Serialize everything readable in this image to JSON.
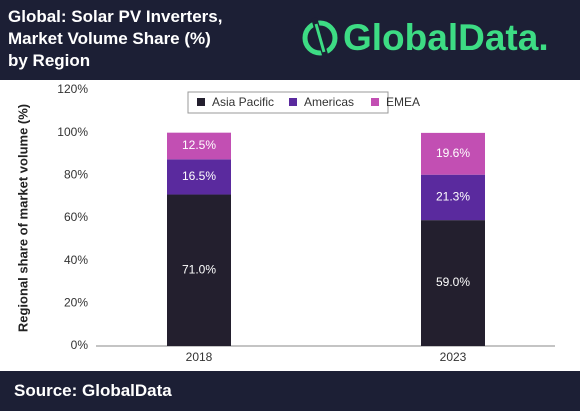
{
  "header": {
    "logo": "GlobalData."
  },
  "chart_data": {
    "type": "stacked_bar",
    "title": "Global: Solar PV Inverters,\nMarket Volume Share (%)\nby Region",
    "y_label": "Regional share of market volume (%)",
    "categories": [
      "2018",
      "2023"
    ],
    "series": [
      {
        "name": "Asia Pacific",
        "color": "#231f2e",
        "values": [
          71.0,
          59.0
        ],
        "value_labels": [
          "71.0%",
          "59.0%"
        ]
      },
      {
        "name": "Americas",
        "color": "#5a2a9e",
        "values": [
          16.5,
          21.3
        ],
        "value_labels": [
          "16.5%",
          "21.3%"
        ]
      },
      {
        "name": "EMEA",
        "color": "#c24fb3",
        "values": [
          12.5,
          19.6
        ],
        "value_labels": [
          "12.5%",
          "19.6%"
        ]
      }
    ],
    "ylim": [
      0,
      120
    ],
    "yticks": [
      {
        "value": 0,
        "label": "0%"
      },
      {
        "value": 20,
        "label": "20%"
      },
      {
        "value": 40,
        "label": "40%"
      },
      {
        "value": 60,
        "label": "60%"
      },
      {
        "value": 80,
        "label": "80%"
      },
      {
        "value": 100,
        "label": "100%"
      },
      {
        "value": 120,
        "label": "120%"
      }
    ],
    "legend": "top"
  },
  "footer": {
    "source": "Source: GlobalData"
  }
}
